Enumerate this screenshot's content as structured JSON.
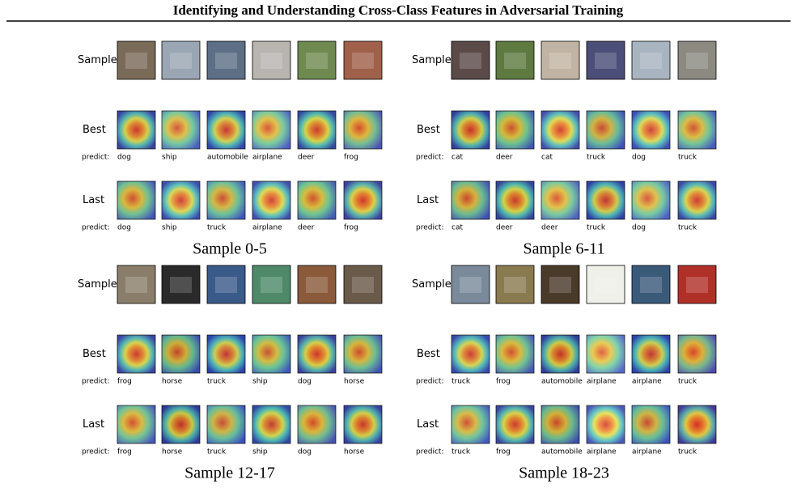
{
  "title": "Identifying and Understanding Cross-Class Features in Adversarial Training",
  "panels": [
    {
      "caption": "Sample 0-5",
      "rows": [
        {
          "label": "Sample"
        },
        {
          "label": "Best",
          "predict_label": "predict:",
          "predictions": [
            "dog",
            "ship",
            "automobile",
            "airplane",
            "deer",
            "frog"
          ]
        },
        {
          "label": "Last",
          "predict_label": "predict:",
          "predictions": [
            "dog",
            "ship",
            "truck",
            "airplane",
            "deer",
            "frog"
          ]
        }
      ]
    },
    {
      "caption": "Sample 6-11",
      "rows": [
        {
          "label": "Sample"
        },
        {
          "label": "Best",
          "predict_label": "predict:",
          "predictions": [
            "cat",
            "deer",
            "cat",
            "truck",
            "dog",
            "truck"
          ]
        },
        {
          "label": "Last",
          "predict_label": "predict:",
          "predictions": [
            "cat",
            "deer",
            "deer",
            "truck",
            "dog",
            "truck"
          ]
        }
      ]
    },
    {
      "caption": "Sample 12-17",
      "rows": [
        {
          "label": "Sample"
        },
        {
          "label": "Best",
          "predict_label": "predict:",
          "predictions": [
            "frog",
            "horse",
            "truck",
            "ship",
            "dog",
            "horse"
          ]
        },
        {
          "label": "Last",
          "predict_label": "predict:",
          "predictions": [
            "frog",
            "horse",
            "truck",
            "ship",
            "dog",
            "horse"
          ]
        }
      ]
    },
    {
      "caption": "Sample 18-23",
      "rows": [
        {
          "label": "Sample"
        },
        {
          "label": "Best",
          "predict_label": "predict:",
          "predictions": [
            "truck",
            "frog",
            "automobile",
            "airplane",
            "airplane",
            "truck"
          ]
        },
        {
          "label": "Last",
          "predict_label": "predict:",
          "predictions": [
            "truck",
            "frog",
            "automobile",
            "airplane",
            "airplane",
            "truck"
          ]
        }
      ]
    }
  ]
}
